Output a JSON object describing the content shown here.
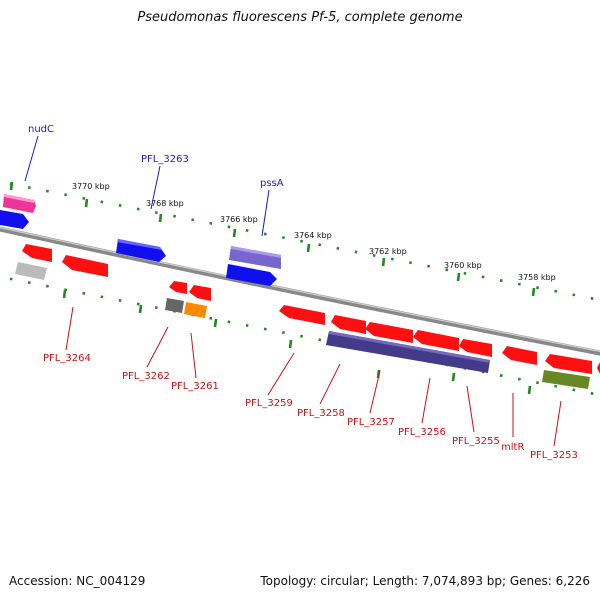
{
  "title": "Pseudomonas fluorescens Pf-5, complete genome",
  "accession": "Accession: NC_004129",
  "summary": "Topology: circular; Length: 7,074,893 bp; Genes: 6,226",
  "ticks": [
    "3770 kbp",
    "3768 kbp",
    "3766 kbp",
    "3764 kbp",
    "3762 kbp",
    "3760 kbp",
    "3758 kbp"
  ],
  "labels_top": [
    "nudC",
    "PFL_3263",
    "pssA"
  ],
  "labels_bottom": [
    "PFL_3264",
    "PFL_3262",
    "PFL_3261",
    "PFL_3259",
    "PFL_3258",
    "PFL_3257",
    "PFL_3256",
    "PFL_3255",
    "mltR",
    "PFL_3253"
  ],
  "colors": {
    "red": "#ff1010",
    "blue": "#1010ee",
    "purple": "#7766cc",
    "navy": "#443a8a",
    "magenta": "#ee3399",
    "grey": "#bbbbbb",
    "darkgrey": "#666666",
    "orange": "#ff8800",
    "olive": "#668822",
    "tick": "#228822"
  }
}
